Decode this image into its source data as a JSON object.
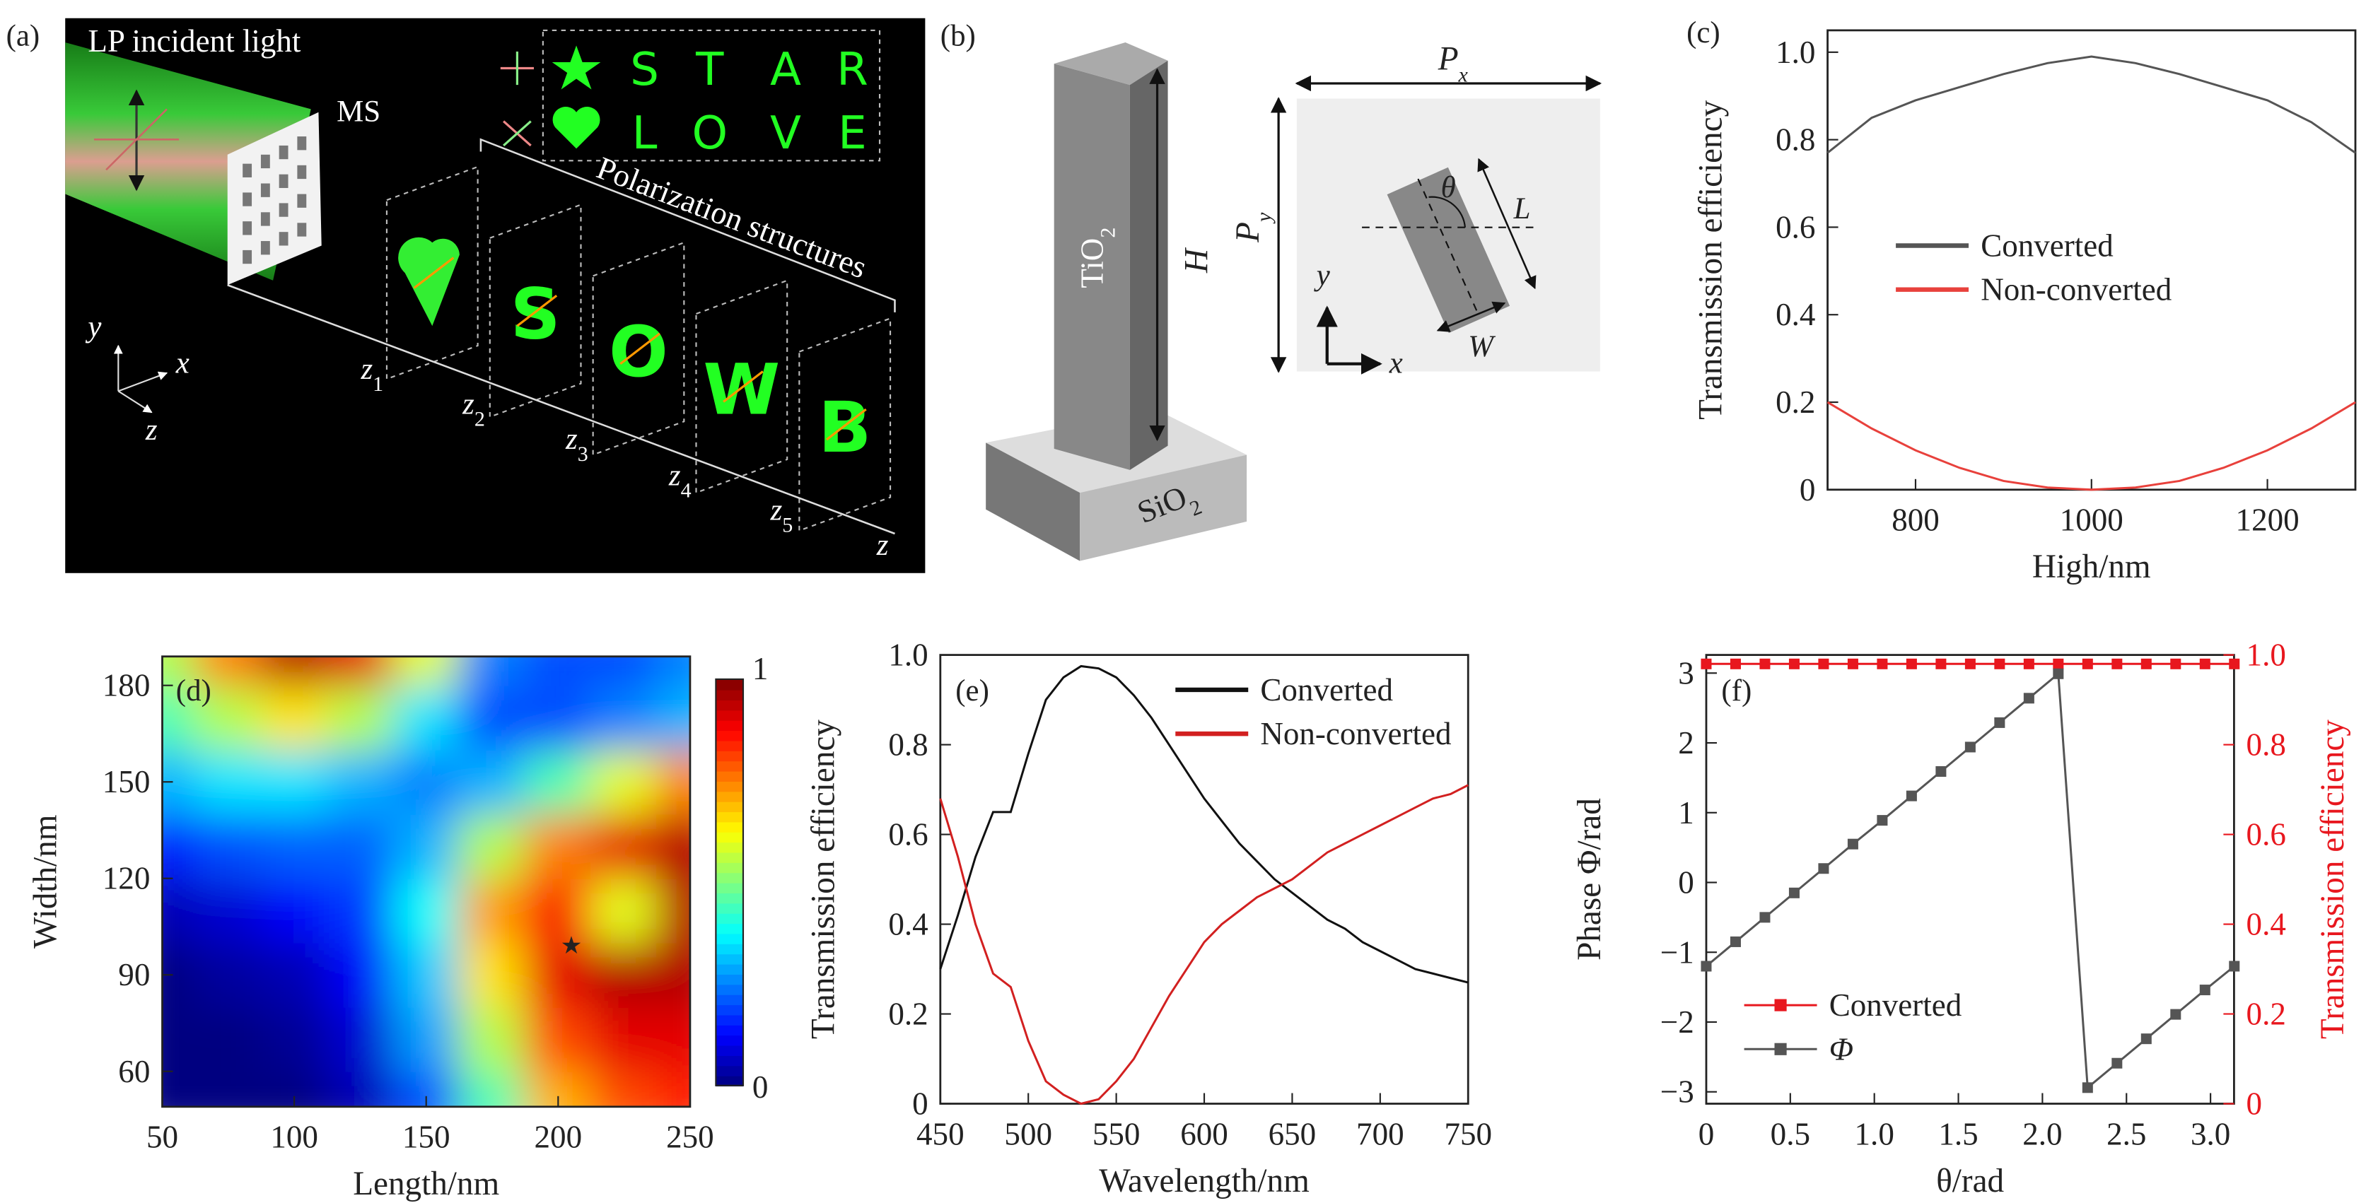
{
  "diagram_a": {
    "label": "(a)",
    "incident": "LP incident light",
    "ms": "MS",
    "star": [
      "S",
      "T",
      "A",
      "R"
    ],
    "love": [
      "L",
      "O",
      "V",
      "E"
    ],
    "structures": "Polarization structures",
    "axes": [
      "y",
      "x",
      "z"
    ],
    "plane_letters": [
      "S",
      "O",
      "W",
      "B"
    ],
    "planes": [
      {
        "base": "z",
        "sub": "1"
      },
      {
        "base": "z",
        "sub": "2"
      },
      {
        "base": "z",
        "sub": "3"
      },
      {
        "base": "z",
        "sub": "4"
      },
      {
        "base": "z",
        "sub": "5"
      }
    ],
    "z_axis": "z"
  },
  "diagram_b": {
    "label": "(b)",
    "pillar": {
      "base": "TiO",
      "sub": "2"
    },
    "height": "H",
    "substrate": {
      "base": "SiO",
      "sub": "2"
    },
    "px": {
      "base": "P",
      "sub": "x"
    },
    "py": {
      "base": "P",
      "sub": "y"
    },
    "theta": "θ",
    "length": "L",
    "width": "W",
    "axes": [
      "y",
      "x"
    ]
  },
  "chart_data": [
    {
      "type": "line",
      "panel_label": "(c)",
      "xlabel": "High/nm",
      "ylabel": "Transmission efficiency",
      "legend": "center left",
      "x": [
        700,
        750,
        800,
        850,
        900,
        950,
        1000,
        1050,
        1100,
        1150,
        1200,
        1250,
        1300
      ],
      "series": [
        {
          "name": "Converted",
          "color": "#555555",
          "values": [
            0.77,
            0.85,
            0.89,
            0.92,
            0.95,
            0.975,
            0.99,
            0.975,
            0.95,
            0.92,
            0.89,
            0.84,
            0.77
          ]
        },
        {
          "name": "Non-converted",
          "color": "#e8413c",
          "values": [
            0.2,
            0.14,
            0.09,
            0.05,
            0.02,
            0.005,
            0,
            0.005,
            0.02,
            0.05,
            0.09,
            0.14,
            0.2
          ]
        }
      ],
      "xlim": [
        700,
        1300
      ],
      "xticks": [
        800,
        1000,
        1200
      ],
      "ylim": [
        0,
        1.05
      ],
      "yticks": [
        0,
        0.2,
        0.4,
        0.6,
        0.8,
        {
          "value": 1,
          "label": "1.0"
        }
      ]
    },
    {
      "type": "heatmap",
      "panel_label": "(d)",
      "xlabel": "Length/nm",
      "ylabel": "Width/nm",
      "x": [
        50,
        75,
        100,
        125,
        150,
        175,
        200,
        225,
        250
      ],
      "y": [
        50,
        70,
        90,
        110,
        130,
        150,
        170,
        190
      ],
      "z": [
        [
          0,
          0,
          0,
          0.05,
          0.2,
          0.45,
          0.7,
          0.8,
          0.85
        ],
        [
          0,
          0,
          0.02,
          0.08,
          0.28,
          0.55,
          0.8,
          0.9,
          0.9
        ],
        [
          0,
          0.03,
          0.05,
          0.12,
          0.32,
          0.65,
          0.9,
          0.95,
          0.95
        ],
        [
          0.05,
          0.08,
          0.12,
          0.18,
          0.38,
          0.72,
          0.88,
          0.6,
          0.95
        ],
        [
          0.15,
          0.2,
          0.22,
          0.22,
          0.3,
          0.55,
          0.75,
          0.9,
          0.95
        ],
        [
          0.3,
          0.35,
          0.35,
          0.3,
          0.25,
          0.3,
          0.45,
          0.6,
          0.75
        ],
        [
          0.45,
          0.55,
          0.65,
          0.55,
          0.35,
          0.2,
          0.2,
          0.25,
          0.3
        ],
        [
          0.55,
          0.75,
          0.95,
          0.9,
          0.6,
          0.25,
          0.2,
          0.2,
          0.25
        ]
      ],
      "xlim": [
        50,
        250
      ],
      "xticks": [
        50,
        100,
        150,
        200,
        250
      ],
      "ylim": [
        49,
        189
      ],
      "yticks": [
        60,
        90,
        120,
        150,
        180
      ],
      "colorbar_ticks": [
        0,
        1
      ],
      "marker": {
        "x": 205,
        "y": 99
      }
    },
    {
      "type": "line",
      "panel_label": "(e)",
      "xlabel": "Wavelength/nm",
      "ylabel": "Transmission efficiency",
      "legend": "upper right",
      "x": [
        450,
        460,
        470,
        480,
        490,
        500,
        510,
        520,
        530,
        540,
        550,
        560,
        570,
        580,
        590,
        600,
        610,
        620,
        630,
        640,
        650,
        660,
        670,
        680,
        690,
        700,
        710,
        720,
        730,
        740,
        750
      ],
      "series": [
        {
          "name": "Converted",
          "color": "#111111",
          "values": [
            0.3,
            0.42,
            0.55,
            0.65,
            0.65,
            0.78,
            0.9,
            0.95,
            0.975,
            0.97,
            0.95,
            0.91,
            0.86,
            0.8,
            0.74,
            0.68,
            0.63,
            0.58,
            0.54,
            0.5,
            0.47,
            0.44,
            0.41,
            0.39,
            0.36,
            0.34,
            0.32,
            0.3,
            0.29,
            0.28,
            0.27
          ]
        },
        {
          "name": "Non-converted",
          "color": "#d22020",
          "values": [
            0.68,
            0.55,
            0.4,
            0.29,
            0.26,
            0.14,
            0.05,
            0.02,
            0,
            0.01,
            0.05,
            0.1,
            0.17,
            0.24,
            0.3,
            0.36,
            0.4,
            0.43,
            0.46,
            0.48,
            0.5,
            0.53,
            0.56,
            0.58,
            0.6,
            0.62,
            0.64,
            0.66,
            0.68,
            0.69,
            0.71
          ]
        }
      ],
      "xlim": [
        450,
        750
      ],
      "xticks": [
        450,
        500,
        550,
        600,
        650,
        700,
        750
      ],
      "ylim": [
        0,
        1
      ],
      "yticks": [
        0,
        0.2,
        0.4,
        0.6,
        0.8,
        {
          "value": 1,
          "label": "1.0"
        }
      ]
    },
    {
      "type": "line",
      "panel_label": "(f)",
      "xlabel": "θ/rad",
      "ylabel": "Phase Φ/rad",
      "y2label": "Transmission efficiency",
      "legend": "lower left",
      "x": [
        0,
        0.1745,
        0.349,
        0.5236,
        0.6981,
        0.8727,
        1.0472,
        1.2217,
        1.3963,
        1.5708,
        1.7453,
        1.9199,
        2.0944,
        2.2689,
        2.4435,
        2.618,
        2.7925,
        2.9671,
        3.1416
      ],
      "series": [
        {
          "name": "Converted",
          "color": "#e8171e",
          "axis": "y2",
          "marker": "square",
          "values": [
            0.98,
            0.98,
            0.98,
            0.98,
            0.98,
            0.98,
            0.98,
            0.98,
            0.98,
            0.98,
            0.98,
            0.98,
            0.98,
            0.98,
            0.98,
            0.98,
            0.98,
            0.98,
            0.98
          ]
        },
        {
          "name": "Φ",
          "color": "#555555",
          "marker": "square",
          "values": [
            -1.2,
            -0.85,
            -0.5,
            -0.15,
            0.2,
            0.55,
            0.89,
            1.24,
            1.59,
            1.94,
            2.29,
            2.64,
            2.99,
            -2.94,
            -2.59,
            -2.24,
            -1.89,
            -1.54,
            -1.2
          ]
        }
      ],
      "xlim": [
        0,
        3.14
      ],
      "xticks": [
        0,
        0.5,
        {
          "value": 1,
          "label": "1.0"
        },
        1.5,
        {
          "value": 2,
          "label": "2.0"
        },
        2.5,
        {
          "value": 3,
          "label": "3.0"
        }
      ],
      "ylim": [
        -3.17,
        3.26
      ],
      "yticks": [
        {
          "value": -3,
          "label": "−3"
        },
        {
          "value": -2,
          "label": "−2"
        },
        {
          "value": -1,
          "label": "−1"
        },
        0,
        1,
        2,
        3
      ],
      "y2lim": [
        0,
        1
      ],
      "y2ticks": [
        0,
        0.2,
        0.4,
        0.6,
        0.8,
        {
          "value": 1,
          "label": "1.0"
        }
      ],
      "y2color": "#e8171e"
    }
  ]
}
